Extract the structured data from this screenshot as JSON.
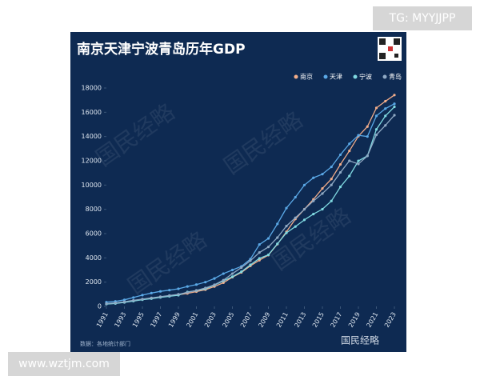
{
  "chart_data": {
    "type": "line",
    "title": "南京天津宁波青岛历年GDP",
    "x": [
      1991,
      1992,
      1993,
      1994,
      1995,
      1996,
      1997,
      1998,
      1999,
      2000,
      2001,
      2002,
      2003,
      2004,
      2005,
      2006,
      2007,
      2008,
      2009,
      2010,
      2011,
      2012,
      2013,
      2014,
      2015,
      2016,
      2017,
      2018,
      2019,
      2020,
      2021,
      2022,
      2023
    ],
    "xlim": [
      1991,
      2023
    ],
    "xticks": [
      1991,
      1993,
      1995,
      1997,
      1999,
      2001,
      2003,
      2005,
      2007,
      2009,
      2011,
      2013,
      2015,
      2017,
      2019,
      2021,
      2023
    ],
    "ylim": [
      0,
      18000
    ],
    "yticks": [
      0,
      2000,
      4000,
      6000,
      8000,
      10000,
      12000,
      14000,
      16000,
      18000
    ],
    "series": [
      {
        "name": "南京",
        "color": "#f2ad8a",
        "values": [
          200,
          260,
          350,
          470,
          580,
          680,
          780,
          870,
          960,
          1070,
          1220,
          1380,
          1640,
          1950,
          2410,
          2800,
          3340,
          3810,
          4230,
          5130,
          6150,
          7200,
          8010,
          8820,
          9720,
          10500,
          11700,
          12820,
          14030,
          14820,
          16360,
          16910,
          17420
        ]
      },
      {
        "name": "天津",
        "color": "#5aa8e6",
        "values": [
          350,
          410,
          540,
          730,
          930,
          1100,
          1240,
          1340,
          1450,
          1640,
          1800,
          2000,
          2300,
          2700,
          3000,
          3300,
          3900,
          5100,
          5600,
          6800,
          8100,
          9000,
          10000,
          10600,
          10900,
          11500,
          12500,
          13400,
          14100,
          14000,
          15700,
          16300,
          16700
        ]
      },
      {
        "name": "宁波",
        "color": "#7fd8e0",
        "values": [
          190,
          240,
          330,
          440,
          550,
          640,
          740,
          830,
          920,
          1190,
          1300,
          1450,
          1750,
          2100,
          2450,
          2860,
          3430,
          3960,
          4250,
          5160,
          6060,
          6580,
          7130,
          7610,
          8010,
          8690,
          9850,
          10750,
          11990,
          12410,
          14590,
          15700,
          16450
        ]
      },
      {
        "name": "青岛",
        "color": "#8fa9c4",
        "values": [
          230,
          290,
          380,
          500,
          600,
          700,
          800,
          900,
          1000,
          1150,
          1320,
          1520,
          1780,
          2160,
          2700,
          3200,
          3770,
          4440,
          4900,
          5670,
          6620,
          7300,
          8000,
          8690,
          9300,
          10010,
          11040,
          12000,
          11740,
          12400,
          14140,
          14920,
          15760
        ]
      }
    ],
    "source": "数据：各地统计部门",
    "watermark": "国民经略"
  },
  "overlays": [
    "TG: MYYJJPP",
    "www.wztjm.com"
  ]
}
